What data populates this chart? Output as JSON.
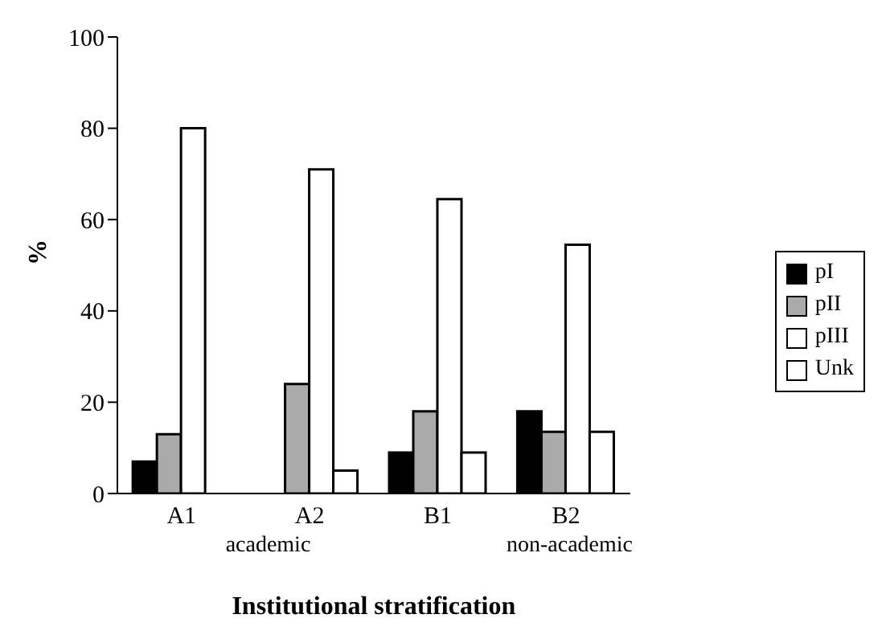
{
  "chart_data": {
    "type": "bar",
    "xlabel": "Institutional stratification",
    "ylabel": "%",
    "categories": [
      "A1",
      "A2",
      "B1",
      "B2"
    ],
    "series": [
      {
        "name": "pI",
        "color": "#000000",
        "values": [
          7,
          0,
          9,
          18
        ]
      },
      {
        "name": "pII",
        "color": "#aaaaaa",
        "values": [
          13,
          24,
          18,
          13.5
        ]
      },
      {
        "name": "pIII",
        "color": "#ffffff",
        "values": [
          80,
          71,
          64.5,
          54.5
        ]
      },
      {
        "name": "Unk",
        "color": "#ffffff",
        "values": [
          0,
          5,
          9,
          13.5
        ]
      }
    ],
    "ylim": [
      0,
      100
    ],
    "yticks": [
      0,
      20,
      40,
      60,
      80,
      100
    ],
    "grid": false,
    "legend": "right",
    "annotations": [
      "academic",
      "non-academic"
    ]
  }
}
